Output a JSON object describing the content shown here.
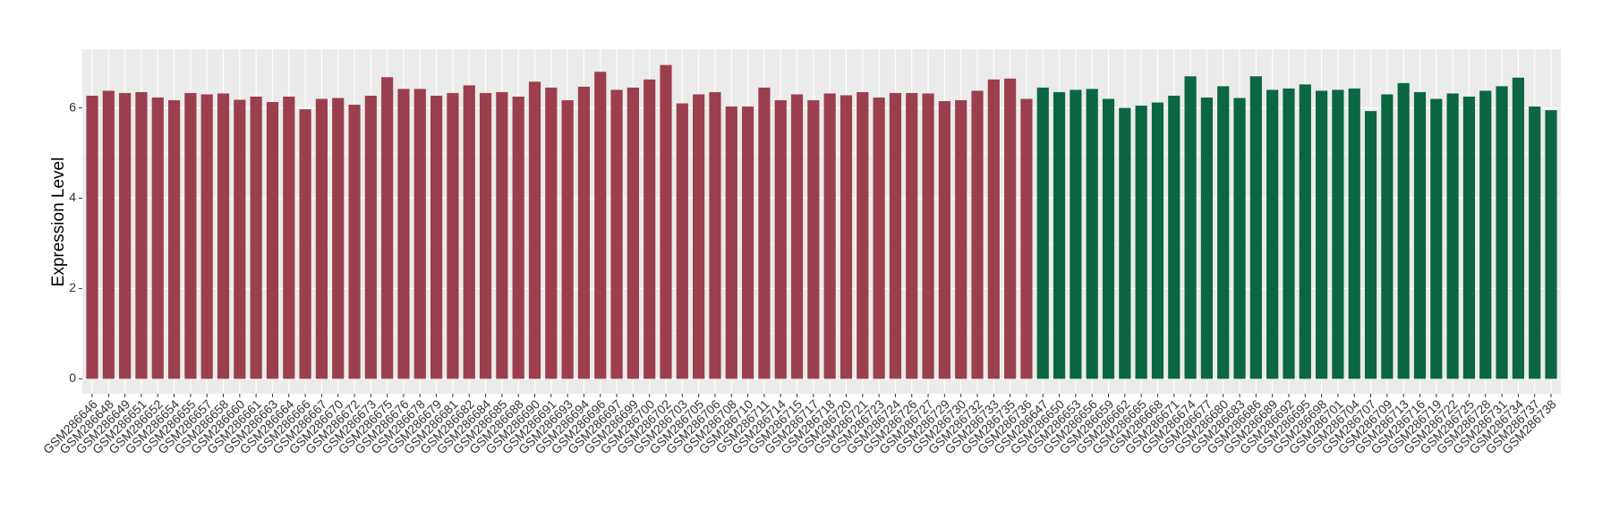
{
  "chart_data": {
    "type": "bar",
    "y_label": "Expression Level",
    "categories": [
      "GSM286646",
      "GSM286648",
      "GSM286649",
      "GSM286651",
      "GSM286652",
      "GSM286654",
      "GSM286655",
      "GSM286657",
      "GSM286658",
      "GSM286660",
      "GSM286661",
      "GSM286663",
      "GSM286664",
      "GSM286666",
      "GSM286667",
      "GSM286670",
      "GSM286672",
      "GSM286673",
      "GSM286675",
      "GSM286676",
      "GSM286678",
      "GSM286679",
      "GSM286681",
      "GSM286682",
      "GSM286684",
      "GSM286685",
      "GSM286688",
      "GSM286690",
      "GSM286691",
      "GSM286693",
      "GSM286694",
      "GSM286696",
      "GSM286697",
      "GSM286699",
      "GSM286700",
      "GSM286702",
      "GSM286703",
      "GSM286705",
      "GSM286706",
      "GSM286708",
      "GSM286710",
      "GSM286711",
      "GSM286714",
      "GSM286715",
      "GSM286717",
      "GSM286718",
      "GSM286720",
      "GSM286721",
      "GSM286723",
      "GSM286724",
      "GSM286726",
      "GSM286727",
      "GSM286729",
      "GSM286730",
      "GSM286732",
      "GSM286733",
      "GSM286735",
      "GSM286736",
      "GSM286647",
      "GSM286650",
      "GSM286653",
      "GSM286656",
      "GSM286659",
      "GSM286662",
      "GSM286665",
      "GSM286668",
      "GSM286671",
      "GSM286674",
      "GSM286677",
      "GSM286680",
      "GSM286683",
      "GSM286686",
      "GSM286689",
      "GSM286692",
      "GSM286695",
      "GSM286698",
      "GSM286701",
      "GSM286704",
      "GSM286707",
      "GSM286709",
      "GSM286713",
      "GSM286716",
      "GSM286719",
      "GSM286722",
      "GSM286725",
      "GSM286728",
      "GSM286731",
      "GSM286734",
      "GSM286737",
      "GSM286738"
    ],
    "series": [
      {
        "color": "#9b3f4e",
        "values": [
          6.27,
          6.38,
          6.33,
          6.35,
          6.23,
          6.17,
          6.33,
          6.3,
          6.32,
          6.18,
          6.25,
          6.13,
          6.25,
          5.97,
          6.2,
          6.22,
          6.07,
          6.27,
          6.68,
          6.42,
          6.42,
          6.27,
          6.33,
          6.5,
          6.33,
          6.35,
          6.25,
          6.58,
          6.45,
          6.17,
          6.47,
          6.8,
          6.4,
          6.45,
          6.63,
          6.95,
          6.1,
          6.3,
          6.35,
          6.03,
          6.03,
          6.45,
          6.17,
          6.3,
          6.17,
          6.32,
          6.28,
          6.35,
          6.23,
          6.33,
          6.33,
          6.32,
          6.15,
          6.17,
          6.38,
          6.63,
          6.65,
          6.2,
          null,
          null,
          null,
          null,
          null,
          null,
          null,
          null,
          null,
          null,
          null,
          null,
          null,
          null,
          null,
          null,
          null,
          null,
          null,
          null,
          null,
          null,
          null,
          null,
          null,
          null,
          null,
          null,
          null,
          null,
          null,
          null
        ]
      },
      {
        "color": "#0b6642",
        "values": [
          null,
          null,
          null,
          null,
          null,
          null,
          null,
          null,
          null,
          null,
          null,
          null,
          null,
          null,
          null,
          null,
          null,
          null,
          null,
          null,
          null,
          null,
          null,
          null,
          null,
          null,
          null,
          null,
          null,
          null,
          null,
          null,
          null,
          null,
          null,
          null,
          null,
          null,
          null,
          null,
          null,
          null,
          null,
          null,
          null,
          null,
          null,
          null,
          null,
          null,
          null,
          null,
          null,
          null,
          null,
          null,
          null,
          null,
          6.45,
          6.35,
          6.4,
          6.42,
          6.2,
          6.0,
          6.05,
          6.12,
          6.27,
          6.7,
          6.23,
          6.48,
          6.22,
          6.7,
          6.4,
          6.43,
          6.52,
          6.38,
          6.4,
          6.43,
          5.93,
          6.3,
          6.55,
          6.35,
          6.2,
          6.32,
          6.25,
          6.38,
          6.48,
          6.67,
          6.03,
          5.95
        ]
      }
    ],
    "ylim": [
      -0.33,
      7.3
    ],
    "yticks": [
      0,
      2,
      4,
      6
    ],
    "grid": true
  }
}
